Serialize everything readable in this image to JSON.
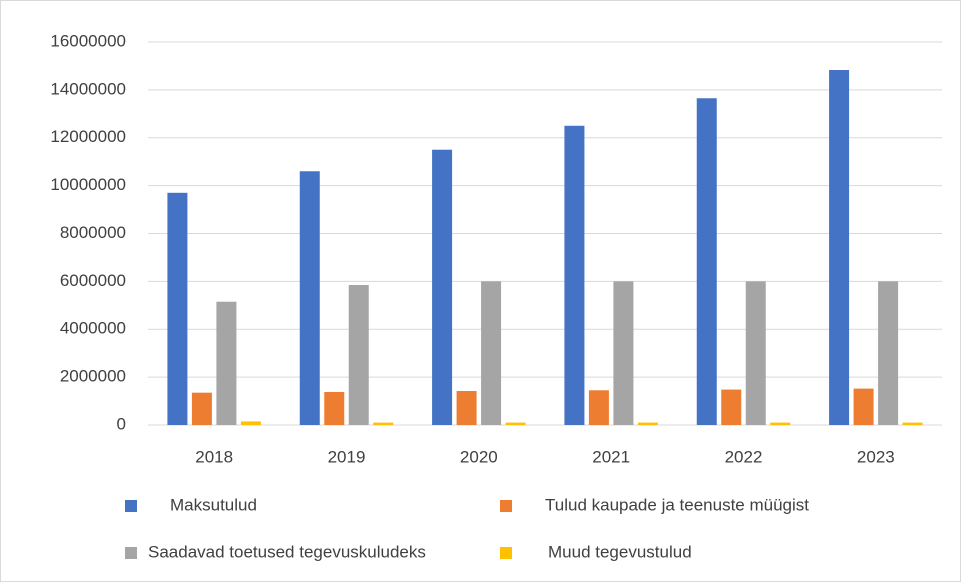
{
  "chart_data": {
    "type": "bar",
    "categories": [
      "2018",
      "2019",
      "2020",
      "2021",
      "2022",
      "2023"
    ],
    "series": [
      {
        "name": "Maksutulud",
        "color": "#4472c4",
        "values": [
          9700000,
          10600000,
          11500000,
          12500000,
          13650000,
          14830000
        ]
      },
      {
        "name": "Tulud kaupade ja teenuste müügist",
        "color": "#ed7d31",
        "values": [
          1350000,
          1380000,
          1420000,
          1450000,
          1480000,
          1520000
        ]
      },
      {
        "name": "Saadavad toetused tegevuskuludeks",
        "color": "#a5a5a5",
        "values": [
          5150000,
          5850000,
          6000000,
          6000000,
          6000000,
          6000000
        ]
      },
      {
        "name": "Muud tegevustulud",
        "color": "#ffc000",
        "values": [
          150000,
          100000,
          100000,
          100000,
          100000,
          100000
        ]
      }
    ],
    "ylim": [
      0,
      16000000
    ],
    "yticks": [
      0,
      2000000,
      4000000,
      6000000,
      8000000,
      10000000,
      12000000,
      14000000,
      16000000
    ],
    "grid": true,
    "legend": "bottom"
  }
}
